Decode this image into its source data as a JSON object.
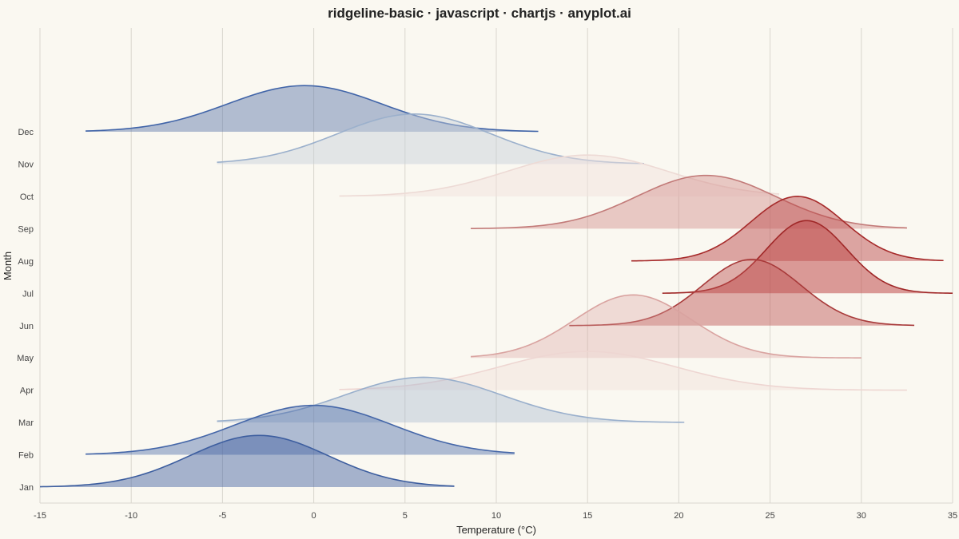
{
  "chart_data": {
    "type": "ridgeline",
    "title": "ridgeline-basic · javascript · chartjs · anyplot.ai",
    "xlabel": "Temperature (°C)",
    "ylabel": "Month",
    "xlim": [
      -15,
      35
    ],
    "xticks": [
      "-15",
      "-10",
      "-5",
      "0",
      "5",
      "10",
      "15",
      "20",
      "25",
      "30",
      "35"
    ],
    "grid": true,
    "categories": [
      "Jan",
      "Feb",
      "Mar",
      "Apr",
      "May",
      "Jun",
      "Jul",
      "Aug",
      "Sep",
      "Oct",
      "Nov",
      "Dec"
    ],
    "series": [
      {
        "name": "Jan",
        "x_range": [
          -15,
          7.7
        ],
        "peak_x": -3.0,
        "spread": 3.8,
        "peak_height": 1.6,
        "fill": "#3D5E9F",
        "stroke": "#3D5E9F",
        "fill_opacity": 0.45
      },
      {
        "name": "Feb",
        "x_range": [
          -12.5,
          11
        ],
        "peak_x": 0.0,
        "spread": 4.3,
        "peak_height": 1.53,
        "fill": "#4466A8",
        "stroke": "#4466A8",
        "fill_opacity": 0.42
      },
      {
        "name": "Mar",
        "x_range": [
          -5.3,
          20.3
        ],
        "peak_x": 6.0,
        "spread": 4.3,
        "peak_height": 1.4,
        "fill": "#A6B6CF",
        "stroke": "#99AFCC",
        "fill_opacity": 0.4
      },
      {
        "name": "Apr",
        "x_range": [
          1.4,
          32.5
        ],
        "peak_x": 15.0,
        "spread": 4.8,
        "peak_height": 1.2,
        "fill": "#F0DCD8",
        "stroke": "#EED6D2",
        "fill_opacity": 0.4
      },
      {
        "name": "May",
        "x_range": [
          8.6,
          30
        ],
        "peak_x": 17.5,
        "spread": 3.2,
        "peak_height": 1.95,
        "fill": "#D9A3A0",
        "stroke": "#D9A3A0",
        "fill_opacity": 0.35
      },
      {
        "name": "Jun",
        "x_range": [
          14,
          32.9
        ],
        "peak_x": 24.0,
        "spread": 2.7,
        "peak_height": 2.05,
        "fill": "#BD4F4F",
        "stroke": "#A83A3A",
        "fill_opacity": 0.45
      },
      {
        "name": "Jul",
        "x_range": [
          19.1,
          35
        ],
        "peak_x": 27.0,
        "spread": 2.2,
        "peak_height": 2.25,
        "fill": "#BF4A4A",
        "stroke": "#A02828",
        "fill_opacity": 0.55
      },
      {
        "name": "Aug",
        "x_range": [
          17.4,
          34.5
        ],
        "peak_x": 26.5,
        "spread": 2.55,
        "peak_height": 2.0,
        "fill": "#BD4A4A",
        "stroke": "#A62A2A",
        "fill_opacity": 0.48
      },
      {
        "name": "Sep",
        "x_range": [
          8.6,
          32.5
        ],
        "peak_x": 21.5,
        "spread": 3.8,
        "peak_height": 1.65,
        "fill": "#D38F8C",
        "stroke": "#C27A78",
        "fill_opacity": 0.45
      },
      {
        "name": "Oct",
        "x_range": [
          1.4,
          25.5
        ],
        "peak_x": 15.0,
        "spread": 4.4,
        "peak_height": 1.28,
        "fill": "#F1E2DD",
        "stroke": "#EDDAD5",
        "fill_opacity": 0.5
      },
      {
        "name": "Nov",
        "x_range": [
          -5.3,
          18.1
        ],
        "peak_x": 5.5,
        "spread": 4.2,
        "peak_height": 1.55,
        "fill": "#C5CEDA",
        "stroke": "#9BB0CC",
        "fill_opacity": 0.45
      },
      {
        "name": "Dec",
        "x_range": [
          -12.5,
          12.3
        ],
        "peak_x": -0.5,
        "spread": 4.2,
        "peak_height": 1.43,
        "fill": "#5873A8",
        "stroke": "#4064A8",
        "fill_opacity": 0.45
      }
    ]
  }
}
